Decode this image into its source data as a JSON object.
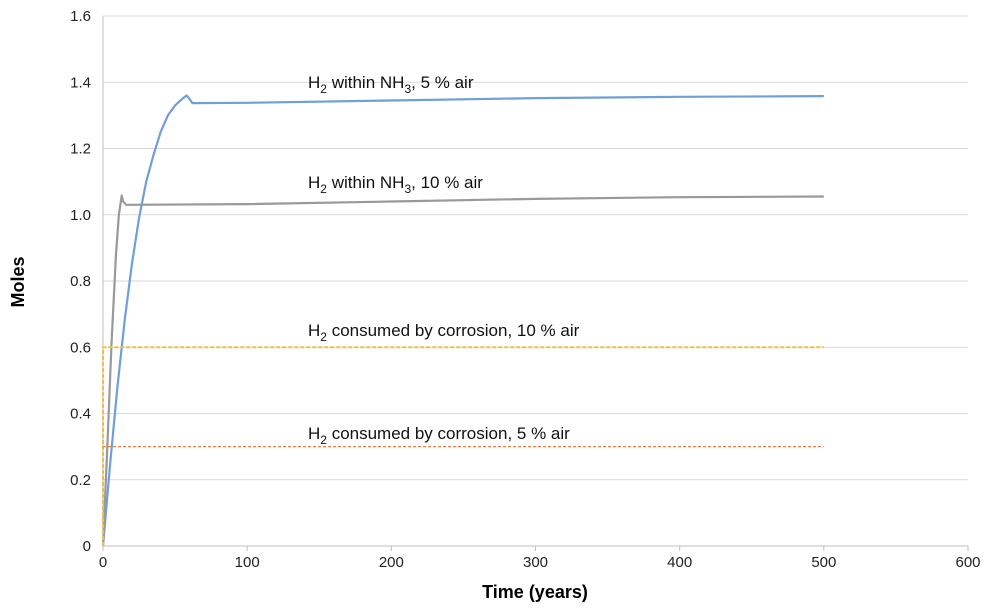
{
  "chart_data": {
    "type": "line",
    "xlabel": "Time (years)",
    "ylabel": "Moles",
    "xlim": [
      0,
      600
    ],
    "ylim": [
      0,
      1.6
    ],
    "x_ticks": [
      0,
      100,
      200,
      300,
      400,
      500,
      600
    ],
    "y_ticks": [
      0,
      0.2,
      0.4,
      0.6,
      0.8,
      1.0,
      1.2,
      1.4,
      1.6
    ],
    "x_tick_labels": [
      "0",
      "100",
      "200",
      "300",
      "400",
      "500",
      "600"
    ],
    "y_tick_labels": [
      "0",
      "0.2",
      "0.4",
      "0.6",
      "0.8",
      "1.0",
      "1.2",
      "1.4",
      "1.6"
    ],
    "grid": true,
    "series": [
      {
        "annotation": {
          "main": "H",
          "sub1": "2",
          "mid": " within NH",
          "sub2": "3",
          "tail": ", 5 % air"
        },
        "color": "#6f9fd6",
        "style": "solid",
        "points": [
          [
            0,
            0
          ],
          [
            5,
            0.25
          ],
          [
            10,
            0.48
          ],
          [
            15,
            0.68
          ],
          [
            20,
            0.85
          ],
          [
            25,
            0.99
          ],
          [
            30,
            1.1
          ],
          [
            35,
            1.18
          ],
          [
            40,
            1.25
          ],
          [
            45,
            1.3
          ],
          [
            50,
            1.33
          ],
          [
            55,
            1.35
          ],
          [
            58,
            1.36
          ],
          [
            60,
            1.35
          ],
          [
            62,
            1.337
          ],
          [
            100,
            1.338
          ],
          [
            200,
            1.345
          ],
          [
            300,
            1.352
          ],
          [
            400,
            1.356
          ],
          [
            500,
            1.358
          ]
        ]
      },
      {
        "annotation": {
          "main": "H",
          "sub1": "2",
          "mid": " within NH",
          "sub2": "3",
          "tail": ", 10 % air"
        },
        "color": "#999999",
        "style": "solid",
        "points": [
          [
            0,
            0
          ],
          [
            3,
            0.3
          ],
          [
            6,
            0.62
          ],
          [
            9,
            0.88
          ],
          [
            11,
            1.0
          ],
          [
            13,
            1.058
          ],
          [
            14,
            1.04
          ],
          [
            16,
            1.03
          ],
          [
            100,
            1.032
          ],
          [
            200,
            1.04
          ],
          [
            300,
            1.048
          ],
          [
            400,
            1.053
          ],
          [
            500,
            1.055
          ]
        ]
      },
      {
        "annotation": {
          "main": "H",
          "sub1": "2",
          "mid": " consumed by corrosion, 10 % air",
          "sub2": "",
          "tail": ""
        },
        "color": "#f0c040",
        "style": "dashed",
        "points": [
          [
            0,
            0
          ],
          [
            0,
            0.6
          ],
          [
            500,
            0.6
          ]
        ]
      },
      {
        "annotation": {
          "main": "H",
          "sub1": "2",
          "mid": " consumed by corrosion, 5 % air",
          "sub2": "",
          "tail": ""
        },
        "color": "#e8804a",
        "style": "dotted",
        "points": [
          [
            0,
            0.3
          ],
          [
            500,
            0.3
          ]
        ]
      }
    ]
  }
}
